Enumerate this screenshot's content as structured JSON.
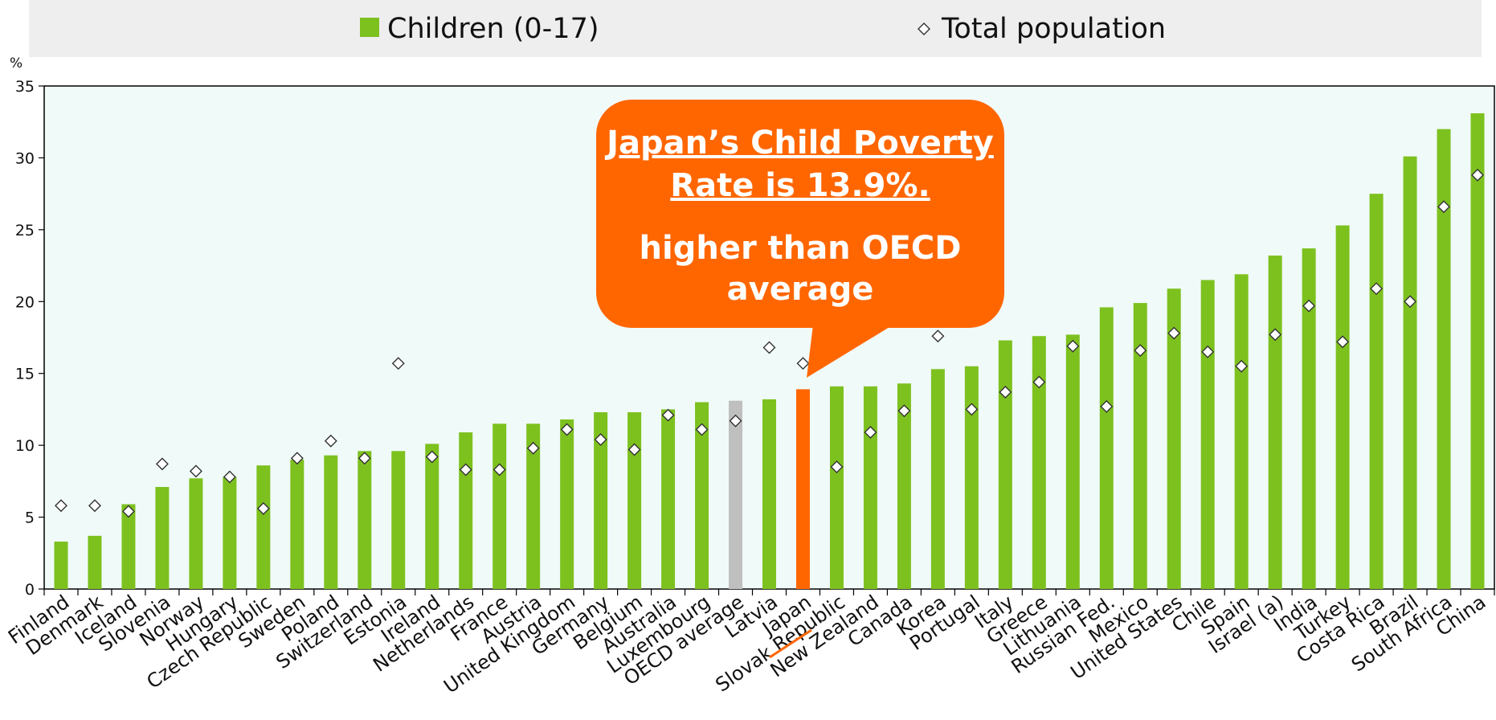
{
  "legend": {
    "children_label": "Children (0-17)",
    "total_label": "Total population"
  },
  "callout": {
    "headline_line1": "Japan’s Child Poverty",
    "headline_line2": "Rate is 13.9%.",
    "body_line1": "higher than OECD",
    "body_line2": "average"
  },
  "colors": {
    "children": "#7dc11f",
    "oecd_average": "#bfbfbf",
    "highlight": "#ff6600",
    "plot_background": "#f0faf9",
    "legend_background": "#eeeeee"
  },
  "chart_data": {
    "type": "bar",
    "ylabel": "%",
    "ylim": [
      0,
      35
    ],
    "yticks": [
      0,
      5,
      10,
      15,
      20,
      25,
      30,
      35
    ],
    "grid": false,
    "legend_position": "top",
    "highlight_category": "Japan",
    "reference_category": "OECD average",
    "categories": [
      "Finland",
      "Denmark",
      "Iceland",
      "Slovenia",
      "Norway",
      "Hungary",
      "Czech Republic",
      "Sweden",
      "Poland",
      "Switzerland",
      "Estonia",
      "Ireland",
      "Netherlands",
      "France",
      "Austria",
      "United Kingdom",
      "Germany",
      "Belgium",
      "Australia",
      "Luxembourg",
      "OECD average",
      "Latvia",
      "Japan",
      "Slovak Republic",
      "New Zealand",
      "Canada",
      "Korea",
      "Portugal",
      "Italy",
      "Greece",
      "Lithuania",
      "Russian Fed.",
      "Mexico",
      "United States",
      "Chile",
      "Spain",
      "Israel (a)",
      "India",
      "Turkey",
      "Costa Rica",
      "Brazil",
      "South Africa",
      "China"
    ],
    "series": [
      {
        "name": "Children (0-17)",
        "marker": "bar",
        "values": [
          3.3,
          3.7,
          5.9,
          7.1,
          7.7,
          7.8,
          8.6,
          9.0,
          9.3,
          9.6,
          9.6,
          10.1,
          10.9,
          11.5,
          11.5,
          11.8,
          12.3,
          12.3,
          12.5,
          13.0,
          13.1,
          13.2,
          13.9,
          14.1,
          14.1,
          14.3,
          15.3,
          15.5,
          17.3,
          17.6,
          17.7,
          19.6,
          19.9,
          20.9,
          21.5,
          21.9,
          23.2,
          23.7,
          25.3,
          27.5,
          30.1,
          32.0,
          33.1
        ]
      },
      {
        "name": "Total population",
        "marker": "diamond",
        "values": [
          5.8,
          5.8,
          5.4,
          8.7,
          8.2,
          7.8,
          5.6,
          9.1,
          10.3,
          9.1,
          15.7,
          9.2,
          8.3,
          8.3,
          9.8,
          11.1,
          10.4,
          9.7,
          12.1,
          11.1,
          11.7,
          16.8,
          15.7,
          8.5,
          10.9,
          12.4,
          17.6,
          12.5,
          13.7,
          14.4,
          16.9,
          12.7,
          16.6,
          17.8,
          16.5,
          15.5,
          17.7,
          19.7,
          17.2,
          20.9,
          20.0,
          26.6,
          28.8
        ]
      }
    ]
  }
}
